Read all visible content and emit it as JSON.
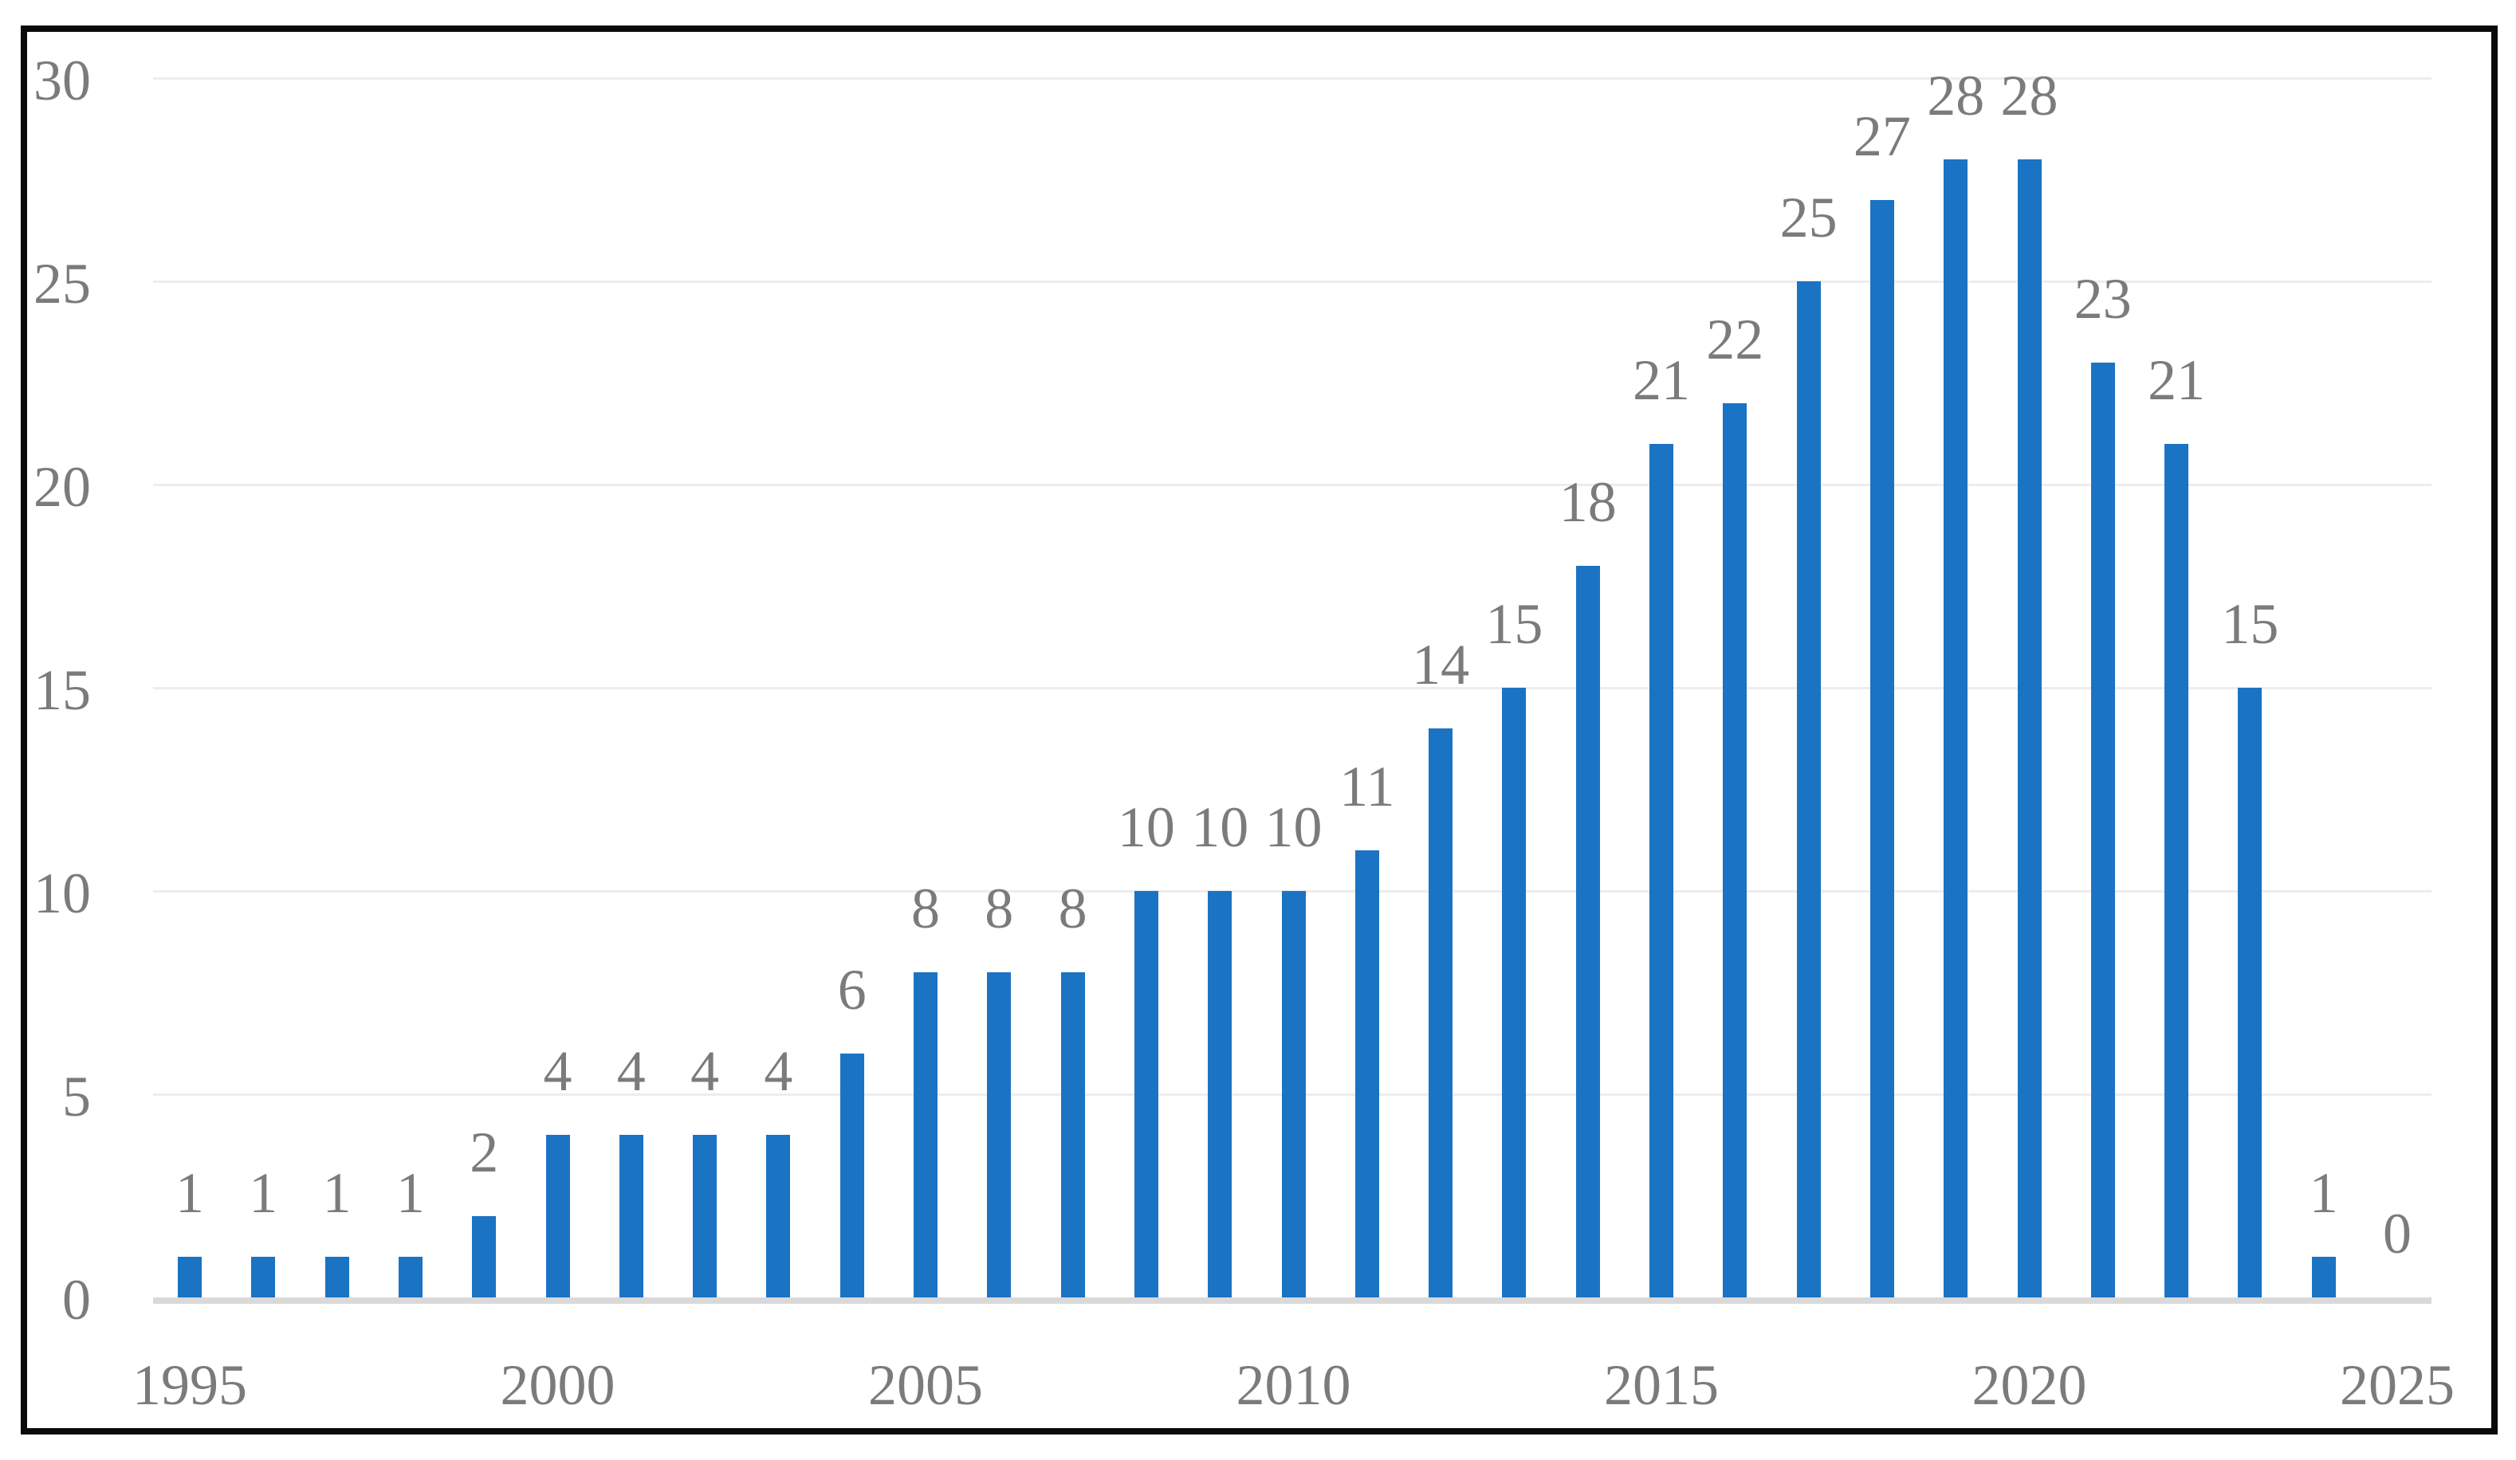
{
  "figure": {
    "background": "#FFFFFF",
    "border_color": "#0A0A0A"
  },
  "chart_data": {
    "type": "bar",
    "title": "",
    "xlabel": "",
    "ylabel": "",
    "categories": [
      1995,
      1996,
      1997,
      1998,
      1999,
      2000,
      2001,
      2002,
      2003,
      2004,
      2005,
      2006,
      2007,
      2008,
      2009,
      2010,
      2011,
      2012,
      2013,
      2014,
      2015,
      2016,
      2017,
      2018,
      2019,
      2020,
      2021,
      2022,
      2023,
      2024,
      2025
    ],
    "values": [
      1,
      1,
      1,
      1,
      2,
      4,
      4,
      4,
      4,
      6,
      8,
      8,
      8,
      10,
      10,
      10,
      11,
      14,
      15,
      18,
      21,
      22,
      25,
      27,
      28,
      28,
      23,
      21,
      15,
      1,
      0
    ],
    "ylim": [
      0,
      30
    ],
    "yticks": [
      0,
      5,
      10,
      15,
      20,
      25,
      30
    ],
    "xticks": [
      1995,
      2000,
      2005,
      2010,
      2015,
      2020,
      2025
    ],
    "grid": true,
    "legend": false,
    "data_labels": "outside-end",
    "colors": {
      "bar": "#1B73C4",
      "text": "#7B7B7B",
      "gridline": "#EDEDED",
      "baseline": "#D9D9D9"
    }
  }
}
